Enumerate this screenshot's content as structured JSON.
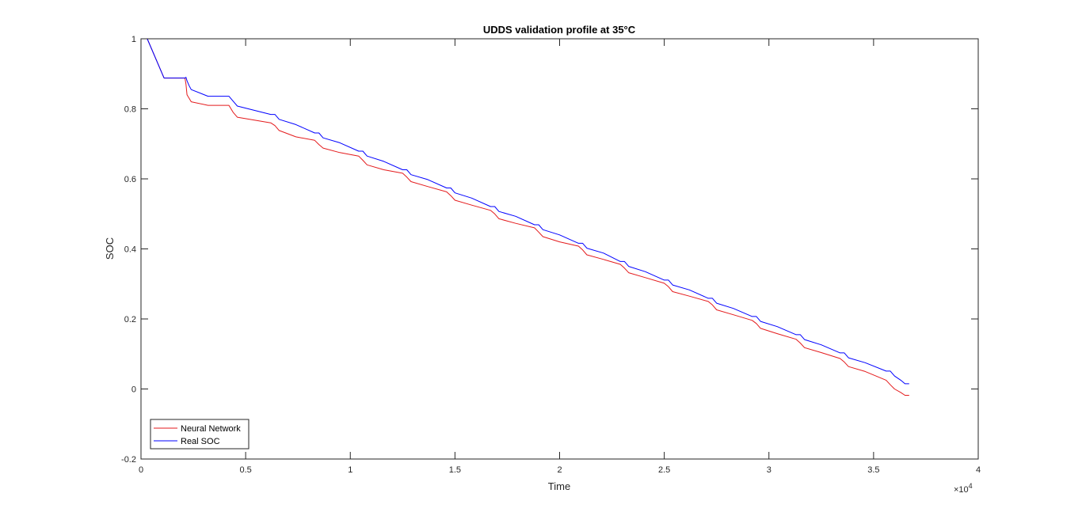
{
  "chart_data": {
    "type": "line",
    "title": "UDDS validation profile at 35°C",
    "xlabel": "Time",
    "ylabel": "SOC",
    "xlim": [
      0,
      40000
    ],
    "ylim": [
      -0.2,
      1
    ],
    "x_ticks": [
      0,
      5000,
      10000,
      15000,
      20000,
      25000,
      30000,
      35000,
      40000
    ],
    "x_tick_labels": [
      "0",
      "0.5",
      "1",
      "1.5",
      "2",
      "2.5",
      "3",
      "3.5",
      "4"
    ],
    "x_exponent_label": "×10",
    "x_exponent_power": "4",
    "y_ticks": [
      -0.2,
      0,
      0.2,
      0.4,
      0.6,
      0.8,
      1
    ],
    "y_tick_labels": [
      "-0.2",
      "0",
      "0.2",
      "0.4",
      "0.6",
      "0.8",
      "1"
    ],
    "grid": false,
    "legend_position": "bottom-left",
    "series": [
      {
        "name": "Neural Network",
        "color": "#e41a1c",
        "x": [
          0,
          300,
          1100,
          2100,
          2150,
          2200,
          2300,
          2400,
          3200,
          4200,
          4400,
          4600,
          6200,
          6400,
          6600,
          7400,
          8300,
          8500,
          8700,
          9500,
          10400,
          10600,
          10800,
          11600,
          12500,
          12700,
          12900,
          13700,
          14600,
          14800,
          15000,
          15800,
          16700,
          16900,
          17100,
          17900,
          18800,
          19000,
          19200,
          20000,
          20900,
          21100,
          21300,
          22100,
          22900,
          23100,
          23300,
          24100,
          25000,
          25200,
          25400,
          26200,
          27100,
          27300,
          27500,
          28300,
          29200,
          29400,
          29600,
          30400,
          31300,
          31500,
          31700,
          32500,
          33400,
          33600,
          33800,
          34600,
          35600,
          35800,
          36000,
          36300,
          36500,
          36700
        ],
        "y": [
          1.0,
          1.0,
          0.888,
          0.888,
          0.87,
          0.84,
          0.83,
          0.82,
          0.81,
          0.81,
          0.79,
          0.776,
          0.76,
          0.752,
          0.738,
          0.72,
          0.71,
          0.698,
          0.688,
          0.675,
          0.665,
          0.653,
          0.64,
          0.626,
          0.616,
          0.605,
          0.592,
          0.578,
          0.563,
          0.552,
          0.539,
          0.525,
          0.51,
          0.5,
          0.486,
          0.473,
          0.46,
          0.448,
          0.435,
          0.42,
          0.408,
          0.397,
          0.383,
          0.37,
          0.356,
          0.345,
          0.332,
          0.318,
          0.302,
          0.292,
          0.278,
          0.265,
          0.25,
          0.24,
          0.226,
          0.212,
          0.196,
          0.187,
          0.173,
          0.158,
          0.142,
          0.131,
          0.118,
          0.104,
          0.087,
          0.077,
          0.064,
          0.05,
          0.025,
          0.012,
          0.0,
          -0.01,
          -0.018,
          -0.018
        ]
      },
      {
        "name": "Real SOC",
        "color": "#0000ff",
        "x": [
          0,
          300,
          1100,
          2100,
          2150,
          2200,
          2300,
          2400,
          3200,
          4200,
          4400,
          4600,
          6200,
          6400,
          6600,
          7400,
          8300,
          8500,
          8700,
          9500,
          10400,
          10600,
          10800,
          11600,
          12500,
          12700,
          12900,
          13700,
          14600,
          14800,
          15000,
          15800,
          16700,
          16900,
          17100,
          17900,
          18800,
          19000,
          19200,
          20000,
          20900,
          21100,
          21300,
          22100,
          22900,
          23100,
          23300,
          24100,
          25000,
          25200,
          25400,
          26200,
          27100,
          27300,
          27500,
          28300,
          29200,
          29400,
          29600,
          30400,
          31300,
          31500,
          31700,
          32500,
          33400,
          33600,
          33800,
          34600,
          35600,
          35800,
          36000,
          36300,
          36500,
          36700
        ],
        "y": [
          1.0,
          1.0,
          0.888,
          0.888,
          0.89,
          0.88,
          0.866,
          0.855,
          0.836,
          0.836,
          0.822,
          0.808,
          0.784,
          0.784,
          0.77,
          0.755,
          0.731,
          0.731,
          0.717,
          0.703,
          0.679,
          0.679,
          0.665,
          0.65,
          0.626,
          0.626,
          0.612,
          0.598,
          0.574,
          0.574,
          0.56,
          0.545,
          0.521,
          0.521,
          0.507,
          0.493,
          0.469,
          0.469,
          0.455,
          0.44,
          0.416,
          0.416,
          0.402,
          0.388,
          0.364,
          0.364,
          0.35,
          0.335,
          0.311,
          0.311,
          0.297,
          0.283,
          0.259,
          0.259,
          0.245,
          0.23,
          0.207,
          0.207,
          0.193,
          0.178,
          0.155,
          0.155,
          0.141,
          0.126,
          0.103,
          0.103,
          0.089,
          0.075,
          0.051,
          0.051,
          0.037,
          0.025,
          0.015,
          0.015
        ]
      }
    ]
  }
}
